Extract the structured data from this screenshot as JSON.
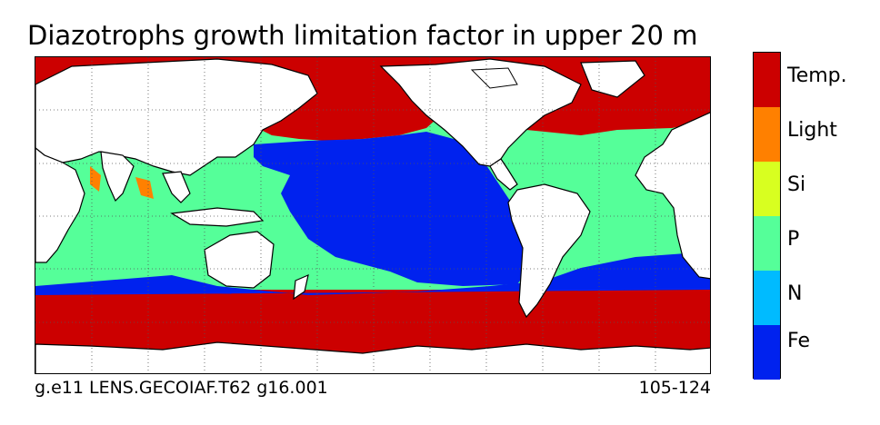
{
  "title": "Diazotrophs growth limitation factor in upper 20 m",
  "footer": {
    "case": "g.e11 LENS.GECOIAF.T62 g16.001",
    "years": "105-124"
  },
  "legend": [
    {
      "label": "Temp.",
      "color": "#cc0000"
    },
    {
      "label": "Light",
      "color": "#ff8000"
    },
    {
      "label": "Si",
      "color": "#d8ff20"
    },
    {
      "label": "P",
      "color": "#55ff99"
    },
    {
      "label": "N",
      "color": "#00bbff"
    },
    {
      "label": "Fe",
      "color": "#0022ee"
    }
  ],
  "colors": {
    "land": "#ffffff",
    "coastline": "#000000",
    "gridline": "#555555"
  }
}
